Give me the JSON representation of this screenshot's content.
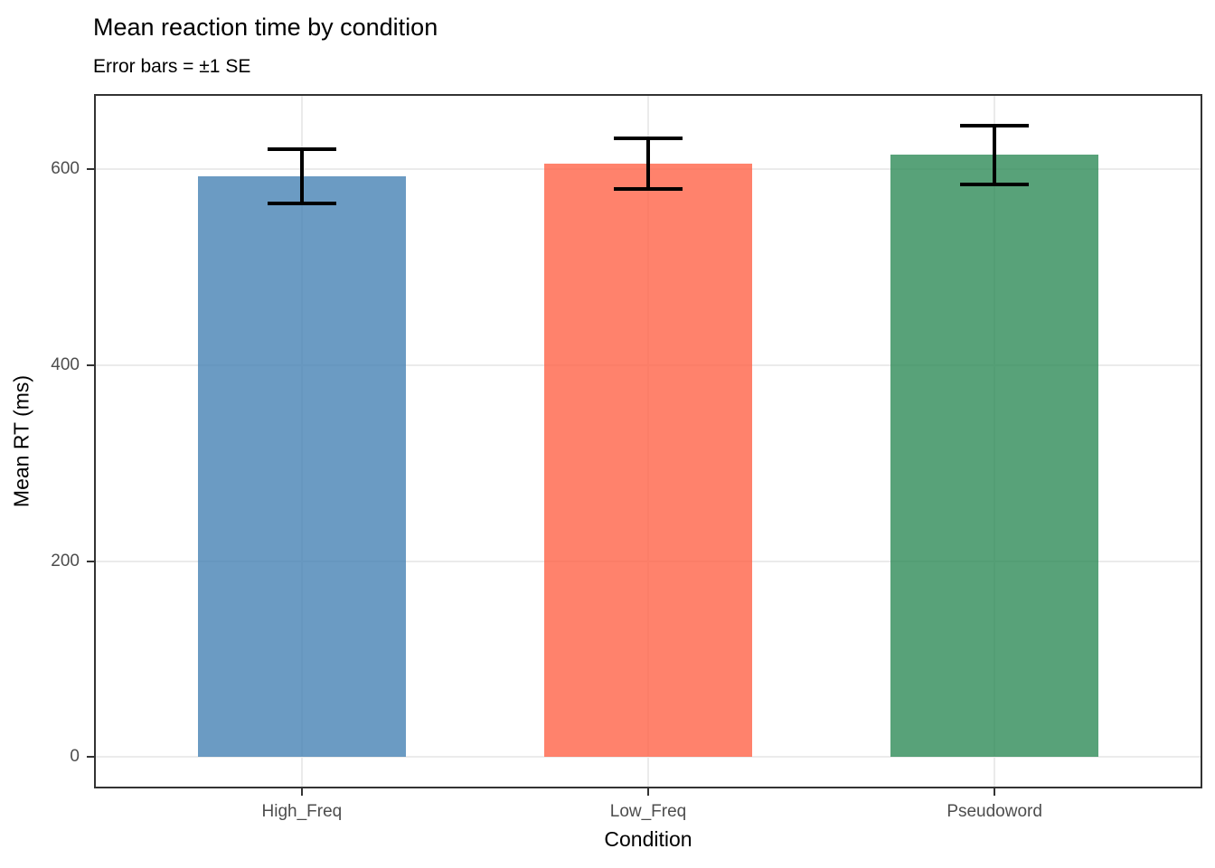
{
  "chart_data": {
    "type": "bar",
    "title": "Mean reaction time by condition",
    "subtitle": "Error bars = ±1 SE",
    "xlabel": "Condition",
    "ylabel": "Mean RT (ms)",
    "categories": [
      "High_Freq",
      "Low_Freq",
      "Pseudoword"
    ],
    "values": [
      593,
      606,
      615
    ],
    "errors_se": [
      28,
      26,
      30
    ],
    "error_bar_meaning": "±1 SE",
    "y_ticks": [
      0,
      200,
      400,
      600
    ],
    "ylim": [
      -32,
      677
    ],
    "legend_position": "none",
    "grid": "major-only",
    "bar_alpha": 0.8,
    "bar_base_colors": [
      "#4682B4",
      "#FF6347",
      "#2E8B57"
    ],
    "bar_rendered_colors": [
      "rgba(70,130,180,0.8)",
      "rgba(255,99,71,0.8)",
      "rgba(46,139,87,0.8)"
    ],
    "error_bar_color": "#000000"
  },
  "style": {
    "background": "#FFFFFF",
    "panel_border_color": "#333333",
    "gridline_color": "#EBEBEB",
    "tick_mark_color": "#333333",
    "tick_label_color": "#4D4D4D",
    "text_color": "#000000"
  }
}
